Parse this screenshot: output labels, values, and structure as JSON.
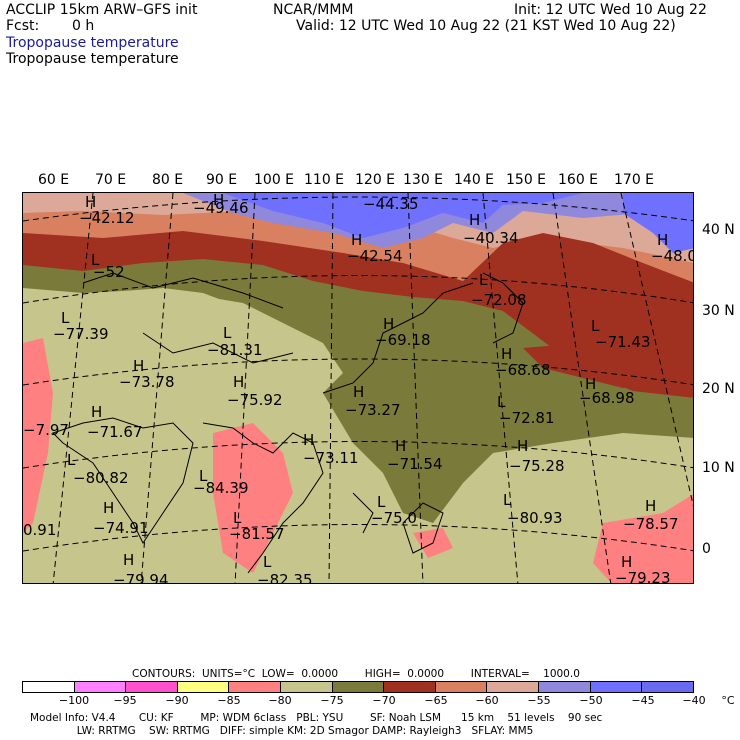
{
  "header": {
    "model_line": "ACCLIP 15km ARW–GFS init",
    "fcst_label": "Fcst:",
    "fcst_value": "0 h",
    "center": "NCAR/MMM",
    "init_line": "Init: 12 UTC Wed 10 Aug 22",
    "valid_line": "Valid: 12 UTC Wed 10 Aug 22 (21 KST Wed 10 Aug 22)",
    "field_title_1": "Tropopause temperature",
    "field_title_2": "Tropopause temperature"
  },
  "colors": {
    "title_blue": "#1a1aa0",
    "bin_colors": [
      "#ffffff",
      "#ff80ff",
      "#ff50d0",
      "#ffff80",
      "#ff8080",
      "#c6c68c",
      "#7a7a3a",
      "#a03020",
      "#d88060",
      "#dca898",
      "#9088dc",
      "#7070ff",
      "#6a6af0"
    ]
  },
  "map": {
    "lon_labels": [
      "60 E",
      "70 E",
      "80 E",
      "90 E",
      "100 E",
      "110 E",
      "120 E",
      "130 E",
      "140 E",
      "150 E",
      "160 E",
      "170 E"
    ],
    "lat_labels": [
      "40 N",
      "30 N",
      "20 N",
      "10 N",
      "0"
    ],
    "highs_lows": [
      {
        "sym": "H",
        "value": "−42.12"
      },
      {
        "sym": "H",
        "value": "−49.46"
      },
      {
        "sym": "H",
        "value": "−44.35"
      },
      {
        "sym": "H",
        "value": "−42.54"
      },
      {
        "sym": "H",
        "value": "−40.34"
      },
      {
        "sym": "H",
        "value": "−48.0"
      },
      {
        "sym": "L",
        "value": "−52"
      },
      {
        "sym": "L",
        "value": "−72.08"
      },
      {
        "sym": "L",
        "value": "−77.39"
      },
      {
        "sym": "L",
        "value": "−81.31"
      },
      {
        "sym": "H",
        "value": "−69.18"
      },
      {
        "sym": "L",
        "value": "−71.43"
      },
      {
        "sym": "H",
        "value": "−73.78"
      },
      {
        "sym": "H",
        "value": "−68.68"
      },
      {
        "sym": "H",
        "value": "−75.92"
      },
      {
        "sym": "H",
        "value": "−68.98"
      },
      {
        "sym": "H",
        "value": "−73.27"
      },
      {
        "sym": "H",
        "value": "−71.67"
      },
      {
        "sym": "L",
        "value": "−72.81"
      },
      {
        "sym": "H",
        "value": "−73.11"
      },
      {
        "sym": "H",
        "value": "−71.54"
      },
      {
        "sym": "H",
        "value": "−75.28"
      },
      {
        "sym": "",
        "value": "−7.97"
      },
      {
        "sym": "L",
        "value": "−80.82"
      },
      {
        "sym": "L",
        "value": "−84.39"
      },
      {
        "sym": "L",
        "value": "−80.93"
      },
      {
        "sym": "H",
        "value": "−74.91"
      },
      {
        "sym": "",
        "value": "0.91"
      },
      {
        "sym": "L",
        "value": "−75.0"
      },
      {
        "sym": "H",
        "value": "−78.57"
      },
      {
        "sym": "L",
        "value": "−81.57"
      },
      {
        "sym": "L",
        "value": "−82.35"
      },
      {
        "sym": "H",
        "value": "−79.94"
      },
      {
        "sym": "H",
        "value": "−79.23"
      }
    ]
  },
  "footer": {
    "contours_line": "CONTOURS:  UNITS=°C  LOW=  0.0000        HIGH=  0.0000        INTERVAL=    1000.0",
    "colorbar_labels": [
      "−100",
      "−95",
      "−90",
      "−85",
      "−80",
      "−75",
      "−70",
      "−65",
      "−60",
      "−55",
      "−50",
      "−45",
      "−40",
      "°C"
    ],
    "model_info_1": "Model Info: V4.4       CU: KF        MP: WDM 6class   PBL: YSU        SF: Noah LSM      15 km    51 levels    90 sec",
    "model_info_2": "              LW: RRTMG    SW: RRTMG   DIFF: simple KM: 2D Smagor DAMP: Rayleigh3   SFLAY: MM5"
  }
}
